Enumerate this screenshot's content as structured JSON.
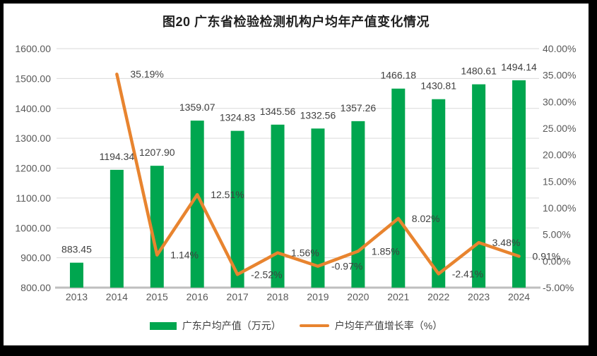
{
  "title": "图20 广东省检验检测机构户均年产值变化情况",
  "legend": {
    "bar_label": "广东户均产值（万元）",
    "line_label": "户均年产值增长率（%）"
  },
  "colors": {
    "bar": "#00A64F",
    "line": "#E8842F",
    "grid": "#D9D9D9",
    "axis_line": "#BFBFBF",
    "tick_text": "#595959",
    "label_text": "#3F3F3F",
    "title_text": "#1F1F1F",
    "background": "#FFFFFF",
    "frame": "#000000"
  },
  "chart_data": {
    "type": "combo",
    "title": "图20 广东省检验检测机构户均年产值变化情况",
    "categories": [
      "2013",
      "2014",
      "2015",
      "2016",
      "2017",
      "2018",
      "2019",
      "2020",
      "2021",
      "2022",
      "2023",
      "2024"
    ],
    "series": [
      {
        "name": "广东户均产值（万元）",
        "type": "bar",
        "axis": "left",
        "values": [
          883.45,
          1194.34,
          1207.9,
          1359.07,
          1324.83,
          1345.56,
          1332.56,
          1357.26,
          1466.18,
          1430.81,
          1480.61,
          1494.14
        ]
      },
      {
        "name": "户均年产值增长率（%）",
        "type": "line",
        "axis": "right",
        "values": [
          null,
          35.19,
          1.14,
          12.51,
          -2.52,
          1.56,
          -0.97,
          1.85,
          8.02,
          -2.41,
          3.48,
          0.91
        ]
      }
    ],
    "left_axis": {
      "min": 800,
      "max": 1600,
      "step": 100,
      "tick_labels": [
        "1600.00",
        "1500.00",
        "1400.00",
        "1300.00",
        "1200.00",
        "1100.00",
        "1000.00",
        "900.00",
        "800.00"
      ]
    },
    "right_axis": {
      "min": -5,
      "max": 40,
      "step": 5,
      "tick_labels": [
        "40.00%",
        "35.00%",
        "30.00%",
        "25.00%",
        "20.00%",
        "15.00%",
        "10.00%",
        "5.00%",
        "0.00%",
        "-5.00%"
      ]
    },
    "grid": true,
    "legend_position": "bottom",
    "data_labels": true
  }
}
